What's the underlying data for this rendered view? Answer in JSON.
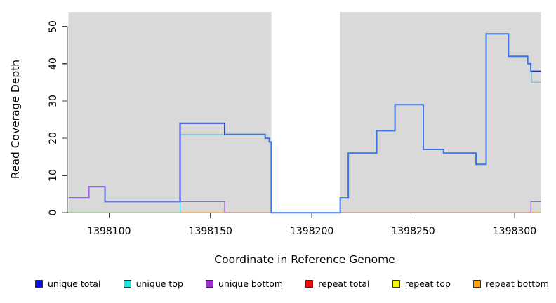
{
  "chart_data": {
    "type": "line",
    "title": "",
    "xlabel": "Coordinate in Reference Genome",
    "ylabel": "Read Coverage Depth",
    "xlim": [
      1398080,
      1398313
    ],
    "ylim": [
      0,
      53.9
    ],
    "x_ticks": [
      1398100,
      1398150,
      1398200,
      1398250,
      1398300
    ],
    "y_ticks": [
      0,
      10,
      20,
      30,
      40,
      50
    ],
    "grid": false,
    "legend_position": "bottom",
    "band_color": "#d9d9d9",
    "plot_bg_bands": [
      {
        "from": 1398080,
        "to": 1398180
      },
      {
        "from": 1398214,
        "to": 1398313
      }
    ],
    "uncovered_gap": {
      "from": 1398180,
      "to": 1398214
    },
    "axis_color": "#404040",
    "legend": [
      {
        "label": "unique total",
        "color": "#0b0bee"
      },
      {
        "label": "unique top",
        "color": "#19e7e7"
      },
      {
        "label": "unique bottom",
        "color": "#9d2fd4"
      },
      {
        "label": "repeat total",
        "color": "#f00a0a"
      },
      {
        "label": "repeat top",
        "color": "#f7f70a"
      },
      {
        "label": "repeat bottom",
        "color": "#ffa408"
      }
    ],
    "series": [
      {
        "name": "repeat top",
        "color": "#f3f37a",
        "width": 1,
        "segments": [
          {
            "points": [
              [
                1398080,
                0
              ]
            ],
            "end": 1398313
          }
        ]
      },
      {
        "name": "repeat total",
        "color": "#d8547a",
        "width": 1.2,
        "segments": [
          {
            "points": [
              [
                1398080,
                0
              ]
            ],
            "end": 1398313
          }
        ]
      },
      {
        "name": "zero baseline green",
        "color": "#7cd57c",
        "width": 1.3,
        "segments": [
          {
            "points": [
              [
                1398080,
                0
              ]
            ],
            "end": 1398135
          }
        ]
      },
      {
        "name": "unique top",
        "color": "#2ee2e8",
        "width": 1.2,
        "segments": [
          {
            "points": [
              [
                1398135,
                0
              ],
              [
                1398135.1,
                21
              ]
            ],
            "end": 1398177
          },
          {
            "points": [
              [
                1398308.3,
                38
              ],
              [
                1398308.4,
                35
              ]
            ],
            "end": 1398313
          }
        ]
      },
      {
        "name": "unique total underlay",
        "color": "#2a2ada",
        "width": 1.3,
        "segments": [
          {
            "points": [
              [
                1398080,
                4
              ],
              [
                1398090,
                7
              ],
              [
                1398098,
                3
              ]
            ],
            "end": 1398135
          }
        ]
      },
      {
        "name": "coverage total",
        "color": "#3a76e8",
        "width": 2,
        "segments": [
          {
            "points": [
              [
                1398080,
                4
              ],
              [
                1398090,
                7
              ],
              [
                1398098,
                3
              ],
              [
                1398135,
                24
              ],
              [
                1398157,
                21
              ],
              [
                1398177,
                20
              ],
              [
                1398179,
                19
              ],
              [
                1398180,
                0
              ],
              [
                1398214,
                4
              ],
              [
                1398218,
                16
              ],
              [
                1398232,
                22
              ],
              [
                1398241,
                29
              ],
              [
                1398255,
                17
              ],
              [
                1398265,
                16
              ],
              [
                1398281,
                13
              ],
              [
                1398286,
                48
              ],
              [
                1398297,
                42
              ],
              [
                1398306.5,
                40
              ],
              [
                1398308,
                38
              ]
            ],
            "end": 1398313
          }
        ]
      },
      {
        "name": "unique total",
        "color": "#2a2ada",
        "width": 1.4,
        "segments": [
          {
            "points": [
              [
                1398135,
                3
              ],
              [
                1398135.1,
                24
              ],
              [
                1398157,
                21
              ]
            ],
            "end": 1398157
          },
          {
            "points": [
              [
                1398308.5,
                38
              ]
            ],
            "end": 1398313
          }
        ]
      },
      {
        "name": "unique bottom",
        "color": "#9b5fe3",
        "width": 1.3,
        "segments": [
          {
            "points": [
              [
                1398080,
                4
              ],
              [
                1398090,
                7
              ],
              [
                1398098,
                3
              ],
              [
                1398157,
                0
              ]
            ],
            "end": 1398157
          },
          {
            "points": [
              [
                1398308,
                0
              ],
              [
                1398308.1,
                3
              ]
            ],
            "end": 1398313
          }
        ]
      },
      {
        "name": "repeat bottom",
        "color": "#ffa408",
        "width": 1.3,
        "segments": [
          {
            "points": [
              [
                1398135,
                0
              ]
            ],
            "end": 1398157
          },
          {
            "points": [
              [
                1398308,
                0
              ]
            ],
            "end": 1398313
          }
        ]
      }
    ]
  }
}
